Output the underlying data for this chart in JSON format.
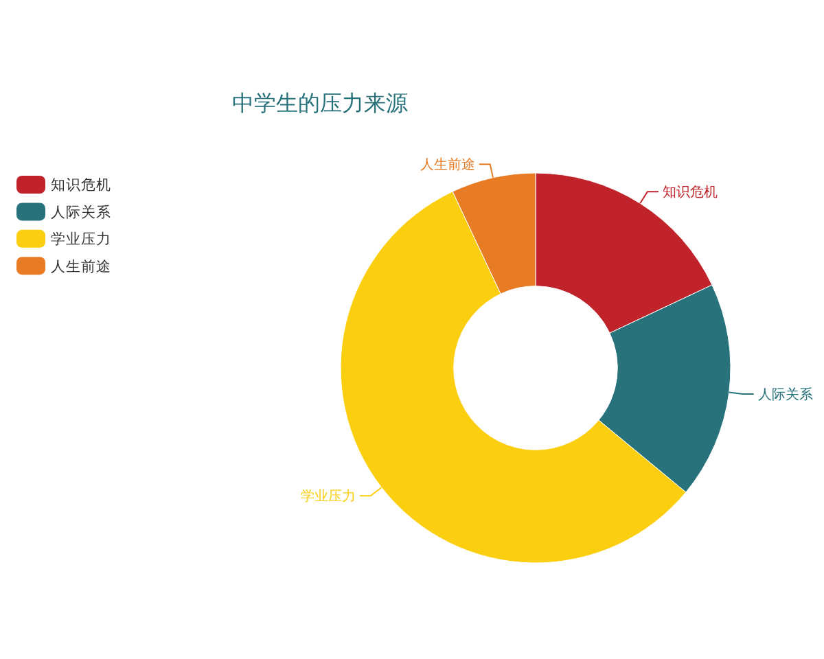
{
  "chart_data": {
    "type": "donut",
    "title": "中学生的压力来源",
    "categories": [
      "知识危机",
      "人际关系",
      "学业压力",
      "人生前途"
    ],
    "values": [
      18,
      18,
      57,
      7
    ],
    "colors": [
      "#c1232b",
      "#27727b",
      "#fcce10",
      "#e87c25"
    ],
    "legend": "left"
  }
}
